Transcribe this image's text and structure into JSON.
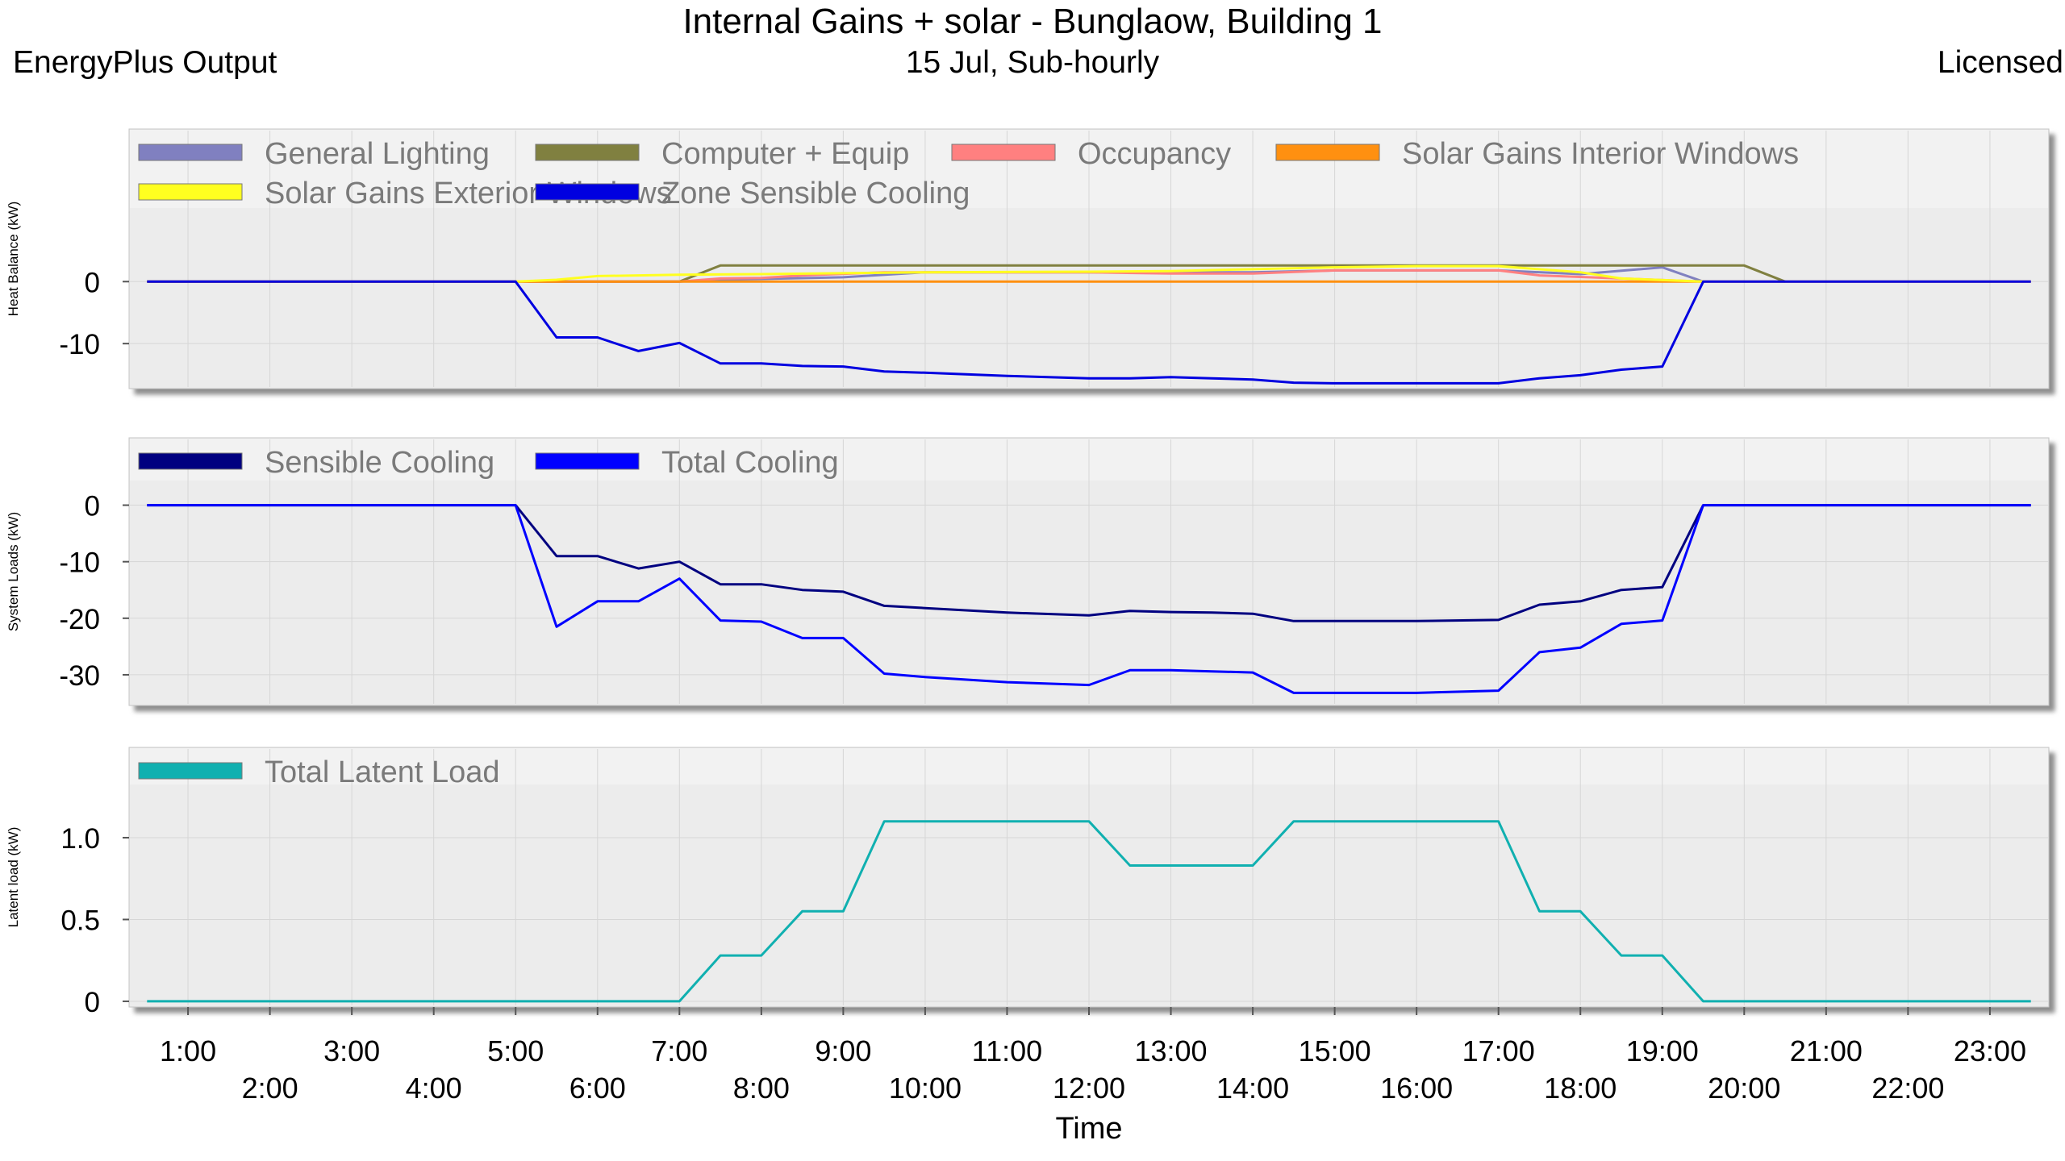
{
  "header": {
    "title": "Internal Gains + solar - Bunglaow, Building 1",
    "source": "EnergyPlus Output",
    "subtitle": "15 Jul, Sub-hourly",
    "license": "Licensed"
  },
  "chart_data": [
    {
      "type": "line",
      "ylabel": "Heat Balance (kW)",
      "ylim": [
        -17,
        12
      ],
      "yticks": [
        0,
        -10
      ],
      "grid": true,
      "legend_placement": "top-left",
      "series": [
        {
          "name": "General Lighting",
          "color": "#8080c0",
          "x": [
            5,
            7,
            7.5,
            9,
            10,
            12,
            13,
            14,
            15,
            17,
            18,
            19,
            19.5
          ],
          "y": [
            0,
            0,
            0.3,
            0.7,
            1.5,
            1.5,
            1.5,
            1.5,
            1.8,
            1.8,
            1.2,
            2.3,
            0
          ]
        },
        {
          "name": "Computer + Equip",
          "color": "#808040",
          "x": [
            0.5,
            7,
            7.5,
            20,
            20.5
          ],
          "y": [
            0,
            0,
            2.6,
            2.6,
            0
          ]
        },
        {
          "name": "Occupancy",
          "color": "#ff8080",
          "x": [
            5,
            7,
            7.5,
            8,
            8.5,
            9.5,
            12,
            13,
            14,
            15,
            16,
            17,
            17.5,
            18.5,
            19.5
          ],
          "y": [
            0,
            0,
            0.5,
            0.6,
            1.0,
            1.5,
            1.5,
            1.3,
            1.3,
            1.8,
            1.8,
            1.8,
            1.0,
            0.5,
            0
          ]
        },
        {
          "name": "Solar Gains Interior Windows",
          "color": "#ff9010",
          "x": [
            0.5,
            23.5
          ],
          "y": [
            0,
            0
          ]
        },
        {
          "name": "Solar Gains Exterior Windows",
          "color": "#ffff20",
          "x": [
            5,
            5.5,
            6,
            7,
            8,
            10,
            12,
            13,
            14,
            15,
            16,
            17,
            18,
            18.5,
            19.5
          ],
          "y": [
            0,
            0.3,
            0.9,
            1.1,
            1.2,
            1.5,
            1.6,
            1.7,
            2.0,
            2.3,
            2.5,
            2.5,
            1.5,
            0.5,
            0
          ]
        },
        {
          "name": "Zone Sensible Cooling",
          "color": "#0000e0",
          "x": [
            0.5,
            5,
            5.5,
            6,
            6.5,
            7,
            7.5,
            8,
            8.5,
            9,
            9.5,
            10,
            11,
            12,
            12.5,
            13,
            13.5,
            14,
            14.5,
            15,
            16,
            17,
            17.5,
            18,
            18.5,
            19,
            19.5,
            23.5
          ],
          "y": [
            0,
            0,
            -9,
            -9,
            -11.2,
            -9.9,
            -13.2,
            -13.2,
            -13.6,
            -13.7,
            -14.5,
            -14.7,
            -15.2,
            -15.6,
            -15.6,
            -15.4,
            -15.6,
            -15.8,
            -16.3,
            -16.4,
            -16.4,
            -16.4,
            -15.6,
            -15.1,
            -14.2,
            -13.7,
            0,
            0
          ]
        }
      ]
    },
    {
      "type": "line",
      "ylabel": "System Loads (kW)",
      "ylim": [
        -35,
        4.5
      ],
      "yticks": [
        0,
        -10,
        -20,
        -30
      ],
      "grid": true,
      "legend_placement": "top-left",
      "series": [
        {
          "name": "Sensible Cooling",
          "color": "#000080",
          "x": [
            0.5,
            5,
            5.5,
            6,
            6.5,
            7,
            7.5,
            8,
            8.5,
            9,
            9.5,
            10,
            11,
            12,
            12.5,
            13,
            13.5,
            14,
            14.5,
            15,
            16,
            17,
            17.5,
            18,
            18.5,
            19,
            19.5,
            23.5
          ],
          "y": [
            0,
            0,
            -9,
            -9,
            -11.2,
            -10,
            -14,
            -14,
            -15,
            -15.3,
            -17.8,
            -18.2,
            -19,
            -19.5,
            -18.7,
            -18.9,
            -19,
            -19.2,
            -20.5,
            -20.5,
            -20.5,
            -20.3,
            -17.6,
            -17,
            -15,
            -14.5,
            0,
            0
          ]
        },
        {
          "name": "Total Cooling",
          "color": "#0000ff",
          "x": [
            0.5,
            5,
            5.5,
            6,
            6.5,
            7,
            7.5,
            8,
            8.5,
            9,
            9.5,
            10,
            11,
            12,
            12.5,
            13,
            13.5,
            14,
            14.5,
            15,
            16,
            17,
            17.5,
            18,
            18.5,
            19,
            19.5,
            23.5
          ],
          "y": [
            0,
            0,
            -21.5,
            -17,
            -17,
            -13,
            -20.4,
            -20.6,
            -23.5,
            -23.5,
            -29.8,
            -30.4,
            -31.3,
            -31.8,
            -29.2,
            -29.2,
            -29.4,
            -29.6,
            -33.2,
            -33.2,
            -33.2,
            -32.8,
            -26,
            -25.2,
            -21,
            -20.4,
            0,
            0
          ]
        }
      ]
    },
    {
      "type": "line",
      "ylabel": "Latent load (kW)",
      "ylim": [
        -0.02,
        1.33
      ],
      "yticks": [
        1.0,
        0.5,
        0
      ],
      "ytick_labels": [
        "1.0",
        "0.5",
        "0"
      ],
      "grid": true,
      "legend_placement": "top-left",
      "series": [
        {
          "name": "Total Latent Load",
          "color": "#10b0b0",
          "x": [
            0.5,
            7,
            7.5,
            8,
            8.5,
            9,
            9.5,
            10,
            11,
            12,
            12.5,
            13,
            13.5,
            14,
            14.5,
            15,
            16,
            17,
            17.5,
            18,
            18.5,
            19,
            19.5,
            23.5
          ],
          "y": [
            0,
            0,
            0.28,
            0.28,
            0.55,
            0.55,
            1.1,
            1.1,
            1.1,
            1.1,
            0.83,
            0.83,
            0.83,
            0.83,
            1.1,
            1.1,
            1.1,
            1.1,
            0.55,
            0.55,
            0.28,
            0.28,
            0,
            0
          ]
        }
      ]
    }
  ],
  "x_axis": {
    "label": "Time",
    "xlim": [
      0.3,
      23.7
    ],
    "ticks_odd": [
      "1:00",
      "3:00",
      "5:00",
      "7:00",
      "9:00",
      "11:00",
      "13:00",
      "15:00",
      "17:00",
      "19:00",
      "21:00",
      "23:00"
    ],
    "ticks_even": [
      "2:00",
      "4:00",
      "6:00",
      "8:00",
      "10:00",
      "12:00",
      "14:00",
      "16:00",
      "18:00",
      "20:00",
      "22:00"
    ]
  }
}
